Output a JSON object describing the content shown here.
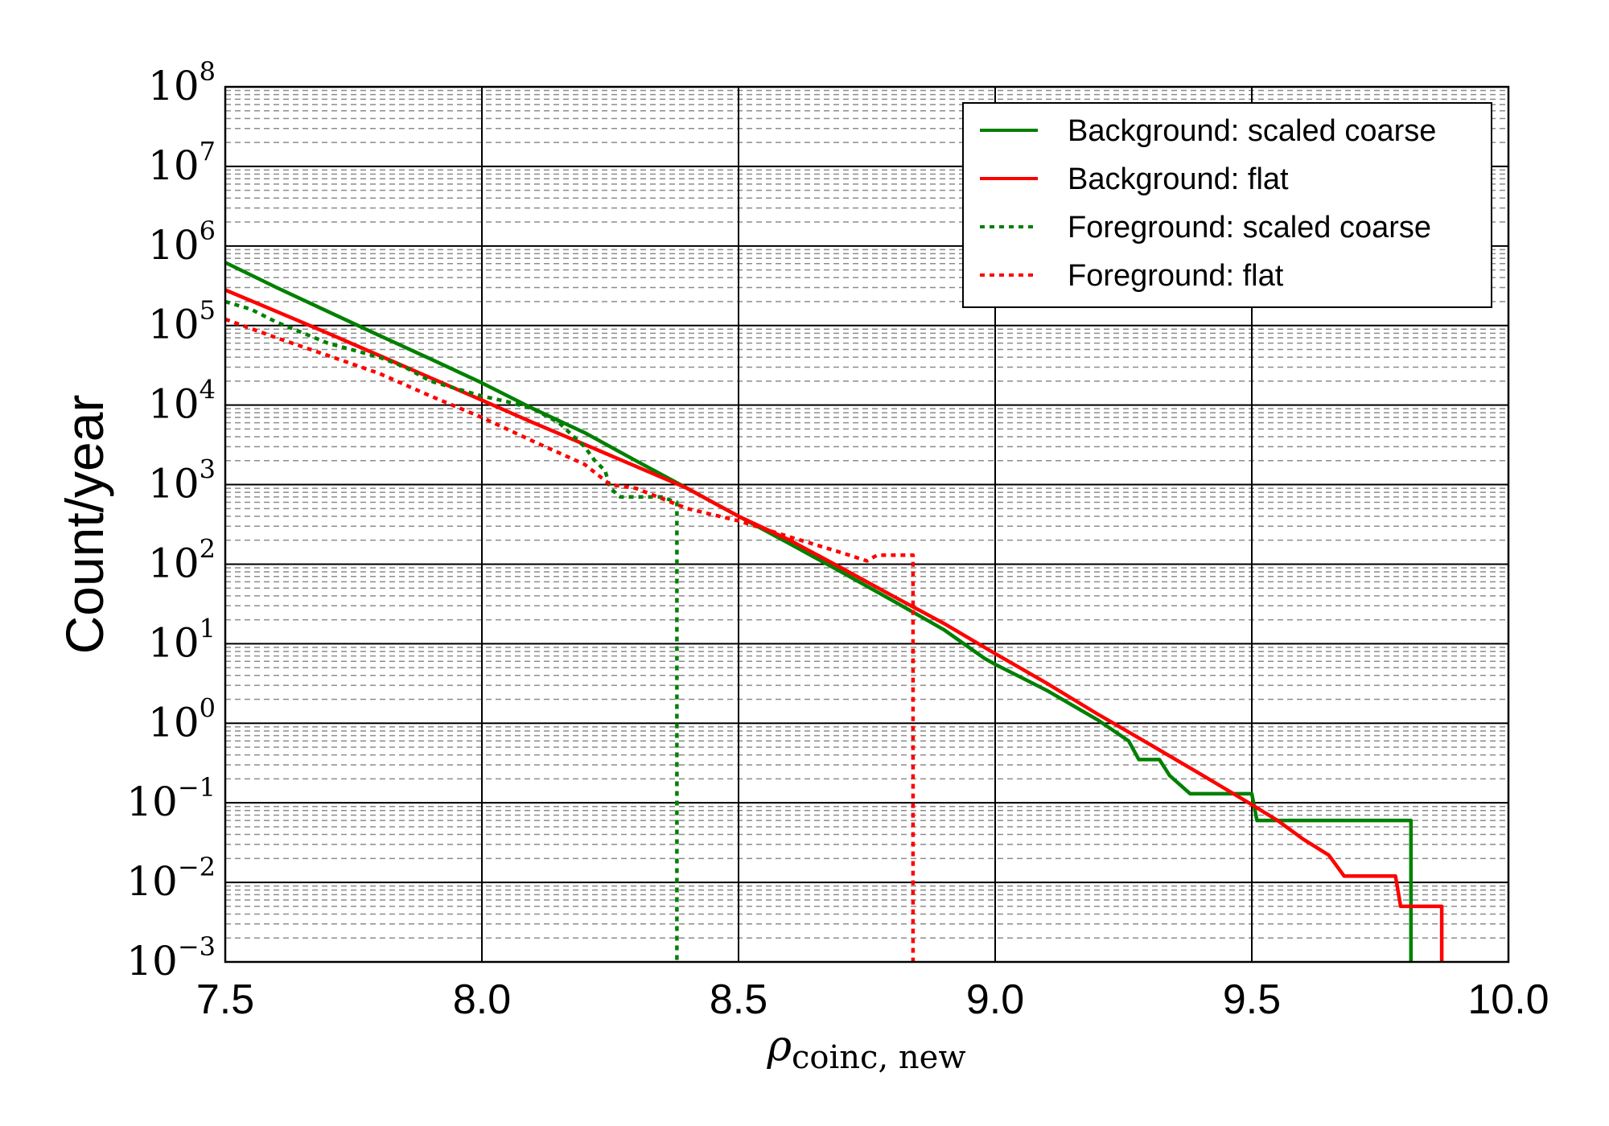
{
  "chart_data": {
    "type": "line",
    "xlabel": "ρ",
    "xlabel_subscript": "coinc, new",
    "ylabel": "Count/year",
    "xlim": [
      7.5,
      10.0
    ],
    "ylim": [
      0.001,
      100000000
    ],
    "yscale": "log",
    "x_ticks": [
      "7.5",
      "8.0",
      "8.5",
      "9.0",
      "9.5",
      "10.0"
    ],
    "y_ticks": [
      {
        "value": 0.001,
        "base": "10",
        "exp": "−3"
      },
      {
        "value": 0.01,
        "base": "10",
        "exp": "−2"
      },
      {
        "value": 0.1,
        "base": "10",
        "exp": "−1"
      },
      {
        "value": 1,
        "base": "10",
        "exp": "0"
      },
      {
        "value": 10,
        "base": "10",
        "exp": "1"
      },
      {
        "value": 100,
        "base": "10",
        "exp": "2"
      },
      {
        "value": 1000,
        "base": "10",
        "exp": "3"
      },
      {
        "value": 10000,
        "base": "10",
        "exp": "4"
      },
      {
        "value": 100000,
        "base": "10",
        "exp": "5"
      },
      {
        "value": 1000000,
        "base": "10",
        "exp": "6"
      },
      {
        "value": 10000000,
        "base": "10",
        "exp": "7"
      },
      {
        "value": 100000000,
        "base": "10",
        "exp": "8"
      }
    ],
    "grid": {
      "major": true,
      "minor": true
    },
    "legend_position": "top-right",
    "series": [
      {
        "name": "Background: scaled coarse",
        "color": "#008000",
        "style": "solid",
        "points": [
          [
            7.5,
            620000
          ],
          [
            7.6,
            300000
          ],
          [
            7.7,
            150000
          ],
          [
            7.8,
            75000
          ],
          [
            7.9,
            38000
          ],
          [
            8.0,
            19000
          ],
          [
            8.1,
            9000
          ],
          [
            8.2,
            4500
          ],
          [
            8.3,
            2000
          ],
          [
            8.4,
            900
          ],
          [
            8.5,
            400
          ],
          [
            8.6,
            180
          ],
          [
            8.7,
            80
          ],
          [
            8.8,
            35
          ],
          [
            8.9,
            15
          ],
          [
            8.98,
            6.5
          ],
          [
            9.0,
            5.5
          ],
          [
            9.1,
            2.6
          ],
          [
            9.2,
            1.1
          ],
          [
            9.26,
            0.6
          ],
          [
            9.28,
            0.35
          ],
          [
            9.32,
            0.35
          ],
          [
            9.34,
            0.22
          ],
          [
            9.38,
            0.13
          ],
          [
            9.5,
            0.13
          ],
          [
            9.51,
            0.06
          ],
          [
            9.81,
            0.06
          ],
          [
            9.81,
            0.001
          ]
        ]
      },
      {
        "name": "Background: flat",
        "color": "#ff0000",
        "style": "solid",
        "points": [
          [
            7.5,
            280000
          ],
          [
            7.6,
            150000
          ],
          [
            7.7,
            80000
          ],
          [
            7.8,
            42000
          ],
          [
            7.9,
            22000
          ],
          [
            8.0,
            11500
          ],
          [
            8.1,
            6000
          ],
          [
            8.2,
            3200
          ],
          [
            8.3,
            1700
          ],
          [
            8.4,
            900
          ],
          [
            8.5,
            400
          ],
          [
            8.6,
            200
          ],
          [
            8.7,
            90
          ],
          [
            8.8,
            40
          ],
          [
            8.9,
            18
          ],
          [
            9.0,
            7.5
          ],
          [
            9.1,
            3.2
          ],
          [
            9.2,
            1.3
          ],
          [
            9.3,
            0.55
          ],
          [
            9.4,
            0.23
          ],
          [
            9.5,
            0.095
          ],
          [
            9.55,
            0.06
          ],
          [
            9.6,
            0.035
          ],
          [
            9.65,
            0.022
          ],
          [
            9.68,
            0.012
          ],
          [
            9.78,
            0.012
          ],
          [
            9.79,
            0.005
          ],
          [
            9.87,
            0.005
          ],
          [
            9.87,
            0.001
          ]
        ]
      },
      {
        "name": "Foreground: scaled coarse",
        "color": "#008000",
        "style": "dotted",
        "points": [
          [
            7.5,
            200000
          ],
          [
            7.55,
            160000
          ],
          [
            7.6,
            110000
          ],
          [
            7.7,
            60000
          ],
          [
            7.8,
            40000
          ],
          [
            7.85,
            30000
          ],
          [
            7.9,
            20000
          ],
          [
            8.0,
            13000
          ],
          [
            8.05,
            11000
          ],
          [
            8.1,
            9000
          ],
          [
            8.15,
            6000
          ],
          [
            8.2,
            3000
          ],
          [
            8.22,
            2000
          ],
          [
            8.24,
            1500
          ],
          [
            8.25,
            900
          ],
          [
            8.27,
            700
          ],
          [
            8.35,
            700
          ],
          [
            8.38,
            600
          ],
          [
            8.38,
            0.001
          ]
        ]
      },
      {
        "name": "Foreground: flat",
        "color": "#ff0000",
        "style": "dotted",
        "points": [
          [
            7.5,
            120000
          ],
          [
            7.6,
            70000
          ],
          [
            7.7,
            42000
          ],
          [
            7.8,
            25000
          ],
          [
            7.9,
            13000
          ],
          [
            8.0,
            7000
          ],
          [
            8.1,
            3500
          ],
          [
            8.2,
            1800
          ],
          [
            8.25,
            1000
          ],
          [
            8.3,
            900
          ],
          [
            8.4,
            500
          ],
          [
            8.5,
            350
          ],
          [
            8.6,
            220
          ],
          [
            8.7,
            140
          ],
          [
            8.75,
            110
          ],
          [
            8.77,
            130
          ],
          [
            8.84,
            130
          ],
          [
            8.84,
            0.001
          ]
        ]
      }
    ]
  }
}
